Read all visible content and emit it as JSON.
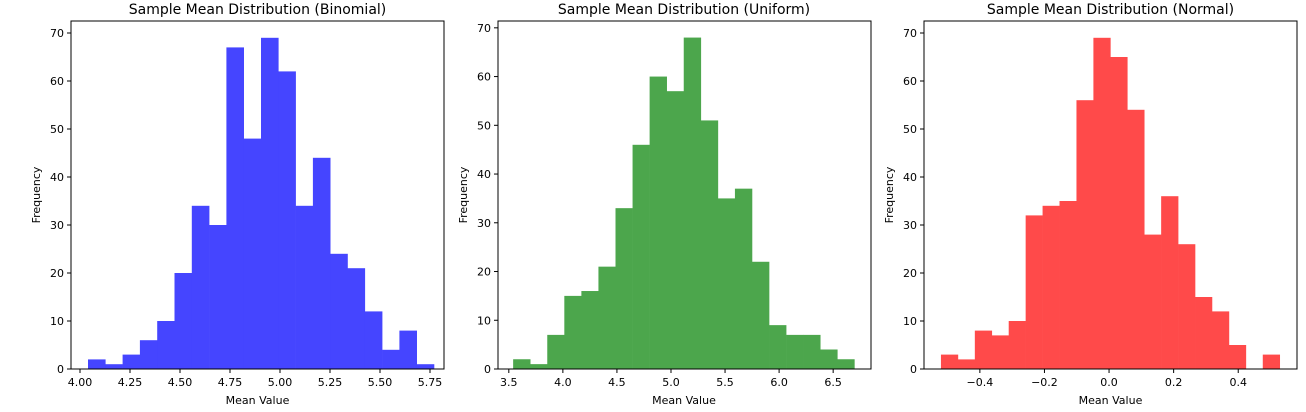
{
  "chart_data": [
    {
      "type": "bar",
      "subtype": "histogram",
      "title": "Sample Mean Distribution (Binomial)",
      "xlabel": "Mean Value",
      "ylabel": "Frequency",
      "color": "#4545ff",
      "xlim": [
        3.955,
        5.82
      ],
      "ylim": [
        0,
        72.5
      ],
      "xticks": [
        4.0,
        4.25,
        4.5,
        4.75,
        5.0,
        5.25,
        5.5,
        5.75
      ],
      "xtick_labels": [
        "4.00",
        "4.25",
        "4.50",
        "4.75",
        "5.00",
        "5.25",
        "5.50",
        "5.75"
      ],
      "yticks": [
        0,
        10,
        20,
        30,
        40,
        50,
        60,
        70
      ],
      "bin_start": 4.04,
      "bin_width": 0.0865,
      "values": [
        2,
        1,
        3,
        6,
        10,
        20,
        34,
        30,
        67,
        48,
        69,
        62,
        34,
        44,
        24,
        21,
        12,
        4,
        8,
        1
      ]
    },
    {
      "type": "bar",
      "subtype": "histogram",
      "title": "Sample Mean Distribution (Uniform)",
      "xlabel": "Mean Value",
      "ylabel": "Frequency",
      "color": "#4ca64c",
      "xlim": [
        3.4,
        6.85
      ],
      "ylim": [
        0,
        71.4
      ],
      "xticks": [
        3.5,
        4.0,
        4.5,
        5.0,
        5.5,
        6.0,
        6.5
      ],
      "xtick_labels": [
        "3.5",
        "4.0",
        "4.5",
        "5.0",
        "5.5",
        "6.0",
        "6.5"
      ],
      "yticks": [
        0,
        10,
        20,
        30,
        40,
        50,
        60,
        70
      ],
      "bin_start": 3.54,
      "bin_width": 0.1578,
      "values": [
        2,
        1,
        7,
        15,
        16,
        21,
        33,
        46,
        60,
        57,
        68,
        51,
        35,
        37,
        22,
        9,
        7,
        7,
        4,
        2
      ]
    },
    {
      "type": "bar",
      "subtype": "histogram",
      "title": "Sample Mean Distribution (Normal)",
      "xlabel": "Mean Value",
      "ylabel": "Frequency",
      "color": "#ff4a4a",
      "xlim": [
        -0.573,
        0.582
      ],
      "ylim": [
        0,
        72.5
      ],
      "xticks": [
        -0.4,
        -0.2,
        0.0,
        0.2,
        0.4
      ],
      "xtick_labels": [
        "−0.4",
        "−0.2",
        "0.0",
        "0.2",
        "0.4"
      ],
      "yticks": [
        0,
        10,
        20,
        30,
        40,
        50,
        60,
        70
      ],
      "bin_start": -0.5205,
      "bin_width": 0.05245,
      "values": [
        3,
        2,
        8,
        7,
        10,
        32,
        34,
        35,
        56,
        69,
        65,
        54,
        28,
        36,
        26,
        15,
        12,
        5,
        0,
        3
      ]
    }
  ]
}
